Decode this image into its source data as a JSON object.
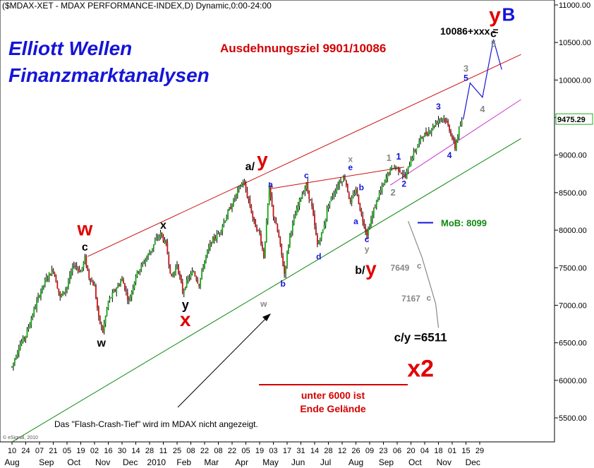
{
  "header": {
    "title": "($MDAX-XET - MDAX PERFORMANCE-INDEX,D) Dynamic,0:00-24:00",
    "brand_line1": "Elliott Wellen",
    "brand_line2": "Finanzmarktanalysen",
    "target": "Ausdehnungsziel 9901/10086",
    "target_formula": "10086+xxx =",
    "footer_note": "Das \"Flash-Crash-Tief\" wird im MDAX nicht angezeigt.",
    "warning_line1": "unter 6000 ist",
    "warning_line2": "Ende Gelände",
    "mob_label": "MoB: 8099",
    "copyright": "© eSignal, 2010"
  },
  "chart_data": {
    "type": "candlestick",
    "title": "($MDAX-XET - MDAX PERFORMANCE-INDEX,D) Dynamic,0:00-24:00",
    "ylim": [
      5200,
      11200
    ],
    "yticks": [
      {
        "value": 5500,
        "label": "5500.00"
      },
      {
        "value": 6000,
        "label": "6000.00"
      },
      {
        "value": 6500,
        "label": "6500.00"
      },
      {
        "value": 7000,
        "label": "7000.00"
      },
      {
        "value": 7500,
        "label": "7500.00"
      },
      {
        "value": 8000,
        "label": "8000.00"
      },
      {
        "value": 8500,
        "label": "8500.00"
      },
      {
        "value": 9000,
        "label": "9000.00"
      },
      {
        "value": 9500,
        "label": "9500.00"
      },
      {
        "value": 10000,
        "label": "10000.00"
      },
      {
        "value": 10500,
        "label": "10500.00"
      },
      {
        "value": 11000,
        "label": "11000.00"
      }
    ],
    "last_price": "9475.29",
    "day_ticks": [
      "10",
      "24",
      "07",
      "21",
      "05",
      "19",
      "02",
      "16",
      "30",
      "14",
      "28",
      "11",
      "25",
      "08",
      "22",
      "08",
      "22",
      "05",
      "19",
      "03",
      "17",
      "31",
      "14",
      "28",
      "12",
      "26",
      "09",
      "23",
      "06",
      "20",
      "04",
      "18",
      "01",
      "15",
      "29"
    ],
    "month_labels": [
      {
        "label": "Aug",
        "day_index": 0
      },
      {
        "label": "Sep",
        "day_index": 2.5
      },
      {
        "label": "Oct",
        "day_index": 4.5
      },
      {
        "label": "Nov",
        "day_index": 6.6
      },
      {
        "label": "Dec",
        "day_index": 8.6
      },
      {
        "label": "2010",
        "day_index": 10.5
      },
      {
        "label": "Feb",
        "day_index": 12.5
      },
      {
        "label": "Mar",
        "day_index": 14.5
      },
      {
        "label": "Apr",
        "day_index": 16.7
      },
      {
        "label": "May",
        "day_index": 18.8
      },
      {
        "label": "Jun",
        "day_index": 20.8
      },
      {
        "label": "Jul",
        "day_index": 22.8
      },
      {
        "label": "Aug",
        "day_index": 25
      },
      {
        "label": "Sep",
        "day_index": 27.2
      },
      {
        "label": "Oct",
        "day_index": 29.3
      },
      {
        "label": "Nov",
        "day_index": 31.4
      },
      {
        "label": "Dec",
        "day_index": 33.5
      }
    ],
    "price_path": [
      [
        0,
        6180
      ],
      [
        0.5,
        6450
      ],
      [
        1,
        6600
      ],
      [
        1.5,
        6880
      ],
      [
        2,
        7150
      ],
      [
        2.5,
        7350
      ],
      [
        3,
        7480
      ],
      [
        3.5,
        7100
      ],
      [
        4,
        7250
      ],
      [
        4.5,
        7550
      ],
      [
        5,
        7450
      ],
      [
        5.3,
        7620
      ],
      [
        5.6,
        7380
      ],
      [
        6,
        7250
      ],
      [
        6.3,
        6820
      ],
      [
        6.6,
        6650
      ],
      [
        7,
        7050
      ],
      [
        7.5,
        7200
      ],
      [
        8,
        7350
      ],
      [
        8.5,
        7050
      ],
      [
        9,
        7400
      ],
      [
        9.5,
        7550
      ],
      [
        10,
        7700
      ],
      [
        10.5,
        7880
      ],
      [
        10.8,
        7950
      ],
      [
        11.2,
        7800
      ],
      [
        11.6,
        7350
      ],
      [
        12,
        7550
      ],
      [
        12.4,
        7180
      ],
      [
        12.8,
        7350
      ],
      [
        13.2,
        7450
      ],
      [
        13.6,
        7280
      ],
      [
        14,
        7600
      ],
      [
        14.5,
        7850
      ],
      [
        15,
        7950
      ],
      [
        15.5,
        8150
      ],
      [
        16,
        8350
      ],
      [
        16.5,
        8550
      ],
      [
        16.8,
        8650
      ],
      [
        17.2,
        8400
      ],
      [
        17.6,
        8100
      ],
      [
        18,
        7950
      ],
      [
        18.3,
        7650
      ],
      [
        18.7,
        8550
      ],
      [
        19,
        8200
      ],
      [
        19.4,
        7900
      ],
      [
        19.8,
        7420
      ],
      [
        20.2,
        7950
      ],
      [
        20.6,
        8200
      ],
      [
        21,
        8450
      ],
      [
        21.4,
        8600
      ],
      [
        21.8,
        8300
      ],
      [
        22.2,
        7800
      ],
      [
        22.6,
        8000
      ],
      [
        23,
        8350
      ],
      [
        23.4,
        8500
      ],
      [
        23.8,
        8650
      ],
      [
        24.2,
        8700
      ],
      [
        24.6,
        8350
      ],
      [
        25,
        8550
      ],
      [
        25.4,
        8200
      ],
      [
        25.8,
        7950
      ],
      [
        26.2,
        8200
      ],
      [
        26.6,
        8450
      ],
      [
        27,
        8600
      ],
      [
        27.4,
        8780
      ],
      [
        27.8,
        8850
      ],
      [
        28.2,
        8800
      ],
      [
        28.6,
        8700
      ],
      [
        29,
        8950
      ],
      [
        29.4,
        9100
      ],
      [
        29.8,
        9250
      ],
      [
        30.2,
        9300
      ],
      [
        30.6,
        9380
      ],
      [
        31,
        9480
      ],
      [
        31.4,
        9500
      ],
      [
        31.8,
        9350
      ],
      [
        32.2,
        9100
      ],
      [
        32.5,
        9350
      ],
      [
        32.8,
        9475
      ]
    ],
    "channel_lines": [
      {
        "name": "upper",
        "color": "#cc1111",
        "from": [
          5.5,
          7650
        ],
        "to": [
          37,
          10340
        ]
      },
      {
        "name": "lower",
        "color": "#118811",
        "from": [
          0,
          5180
        ],
        "to": [
          37,
          9220
        ]
      },
      {
        "name": "acceleration",
        "color": "#cc33cc",
        "from": [
          27.5,
          8600
        ],
        "to": [
          37,
          9740
        ]
      },
      {
        "name": "b-e-line",
        "color": "#cc1111",
        "from": [
          18.7,
          8550
        ],
        "to": [
          28.5,
          8840
        ]
      }
    ],
    "projection_path": [
      [
        32.8,
        9475
      ],
      [
        33.3,
        9960
      ],
      [
        34.2,
        9770
      ],
      [
        35,
        10540
      ],
      [
        35.6,
        10140
      ]
    ],
    "correction_path": [
      [
        28.8,
        8120
      ],
      [
        29.8,
        7640
      ],
      [
        30.8,
        7020
      ],
      [
        31,
        6700
      ]
    ],
    "mob_level": 8099,
    "wave_labels": [
      {
        "text": "w",
        "x": 5.3,
        "v": 7930,
        "color": "#e00000",
        "size": 28
      },
      {
        "text": "c",
        "x": 5.3,
        "v": 7730,
        "color": "#000000",
        "size": 16
      },
      {
        "text": "w",
        "x": 6.5,
        "v": 6450,
        "color": "#000000",
        "size": 16
      },
      {
        "text": "x",
        "x": 11,
        "v": 8020,
        "color": "#000000",
        "size": 16
      },
      {
        "text": "y",
        "x": 12.6,
        "v": 6950,
        "color": "#000000",
        "size": 18
      },
      {
        "text": "x",
        "x": 12.6,
        "v": 6720,
        "color": "#e00000",
        "size": 28
      },
      {
        "text": "a/",
        "x": 17.3,
        "v": 8800,
        "color": "#000000",
        "size": 16
      },
      {
        "text": "y",
        "x": 18.2,
        "v": 8850,
        "color": "#e00000",
        "size": 28
      },
      {
        "text": "w",
        "x": 18.3,
        "v": 6980,
        "color": "#888888",
        "size": 12
      },
      {
        "text": "a",
        "x": 18.8,
        "v": 8570,
        "color": "#1515d8",
        "size": 12
      },
      {
        "text": "b",
        "x": 19.7,
        "v": 7250,
        "color": "#1515d8",
        "size": 12
      },
      {
        "text": "c",
        "x": 21.4,
        "v": 8690,
        "color": "#1515d8",
        "size": 12
      },
      {
        "text": "d",
        "x": 22.3,
        "v": 7610,
        "color": "#1515d8",
        "size": 12
      },
      {
        "text": "x",
        "x": 24.6,
        "v": 8910,
        "color": "#888888",
        "size": 12
      },
      {
        "text": "e",
        "x": 24.6,
        "v": 8800,
        "color": "#1515d8",
        "size": 12
      },
      {
        "text": "b",
        "x": 25.4,
        "v": 8530,
        "color": "#1515d8",
        "size": 12
      },
      {
        "text": "a",
        "x": 25,
        "v": 8080,
        "color": "#1515d8",
        "size": 12
      },
      {
        "text": "c",
        "x": 25.8,
        "v": 7840,
        "color": "#1515d8",
        "size": 12
      },
      {
        "text": "y",
        "x": 25.8,
        "v": 7710,
        "color": "#888888",
        "size": 12
      },
      {
        "text": "b/",
        "x": 25.3,
        "v": 7420,
        "color": "#000000",
        "size": 16
      },
      {
        "text": "y",
        "x": 26.1,
        "v": 7400,
        "color": "#e00000",
        "size": 28
      },
      {
        "text": "1",
        "x": 27.4,
        "v": 8920,
        "color": "#888888",
        "size": 13
      },
      {
        "text": "1",
        "x": 28.1,
        "v": 8940,
        "color": "#1515d8",
        "size": 13
      },
      {
        "text": "2",
        "x": 27.7,
        "v": 8460,
        "color": "#888888",
        "size": 13
      },
      {
        "text": "2",
        "x": 28.5,
        "v": 8580,
        "color": "#1515d8",
        "size": 12
      },
      {
        "text": "3",
        "x": 31,
        "v": 9610,
        "color": "#1515d8",
        "size": 12
      },
      {
        "text": "4",
        "x": 31.8,
        "v": 8960,
        "color": "#1515d8",
        "size": 12
      },
      {
        "text": "3",
        "x": 33,
        "v": 10110,
        "color": "#888888",
        "size": 13
      },
      {
        "text": "5",
        "x": 33,
        "v": 9990,
        "color": "#1515d8",
        "size": 12
      },
      {
        "text": "4",
        "x": 34.2,
        "v": 9570,
        "color": "#888888",
        "size": 13
      },
      {
        "text": "5",
        "x": 35,
        "v": 10440,
        "color": "#888888",
        "size": 13
      },
      {
        "text": "c",
        "x": 35,
        "v": 10570,
        "color": "#000000",
        "size": 16
      },
      {
        "text": "y",
        "x": 35.1,
        "v": 10770,
        "color": "#e00000",
        "size": 30
      },
      {
        "text": "B",
        "x": 36.1,
        "v": 10790,
        "color": "#1515d8",
        "size": 26
      },
      {
        "text": "7649",
        "x": 28.2,
        "v": 7460,
        "color": "#888888",
        "size": 12
      },
      {
        "text": "c",
        "x": 29.6,
        "v": 7490,
        "color": "#888888",
        "size": 12
      },
      {
        "text": "7167",
        "x": 29,
        "v": 7050,
        "color": "#888888",
        "size": 12
      },
      {
        "text": "c",
        "x": 30.3,
        "v": 7060,
        "color": "#888888",
        "size": 12
      },
      {
        "text": "c/y =6511",
        "x": 29.7,
        "v": 6520,
        "color": "#000000",
        "size": 17
      },
      {
        "text": "x2",
        "x": 29.7,
        "v": 6050,
        "color": "#e00000",
        "size": 34
      }
    ]
  }
}
